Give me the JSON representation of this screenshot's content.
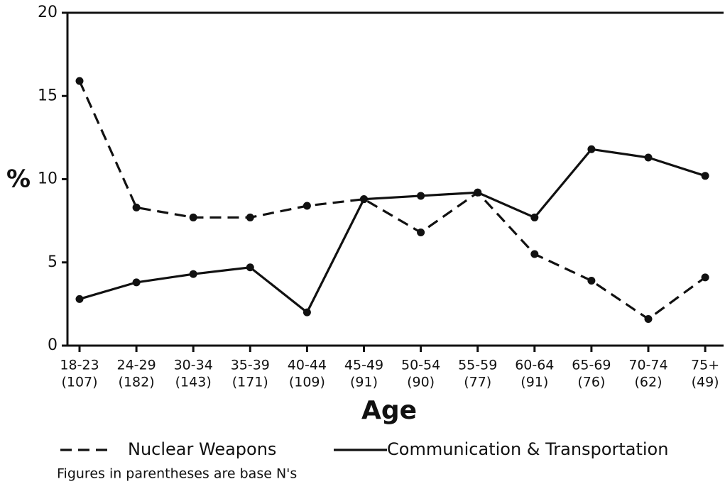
{
  "chart_data": {
    "type": "line",
    "y_label": "%",
    "x_label": "Age",
    "categories": [
      "18-23",
      "24-29",
      "30-34",
      "35-39",
      "40-44",
      "45-49",
      "50-54",
      "55-59",
      "60-64",
      "65-69",
      "70-74",
      "75+"
    ],
    "category_notes": [
      "(107)",
      "(182)",
      "(143)",
      "(171)",
      "(109)",
      "(91)",
      "(90)",
      "(77)",
      "(91)",
      "(76)",
      "(62)",
      "(49)"
    ],
    "series": [
      {
        "name": "Nuclear Weapons",
        "color": "#111111",
        "dash": true,
        "values": [
          15.9,
          8.3,
          7.7,
          7.7,
          8.4,
          8.8,
          6.8,
          9.2,
          5.5,
          3.9,
          1.6,
          4.1
        ]
      },
      {
        "name": "Communication & Transportation",
        "color": "#111111",
        "dash": false,
        "values": [
          2.8,
          3.8,
          4.3,
          4.7,
          2.0,
          8.8,
          9.0,
          9.2,
          7.7,
          11.8,
          11.3,
          10.2
        ]
      }
    ],
    "ylim": [
      0,
      20
    ],
    "yticks": [
      0,
      5,
      10,
      15,
      20
    ],
    "note": "Figures in parentheses are base N's"
  }
}
